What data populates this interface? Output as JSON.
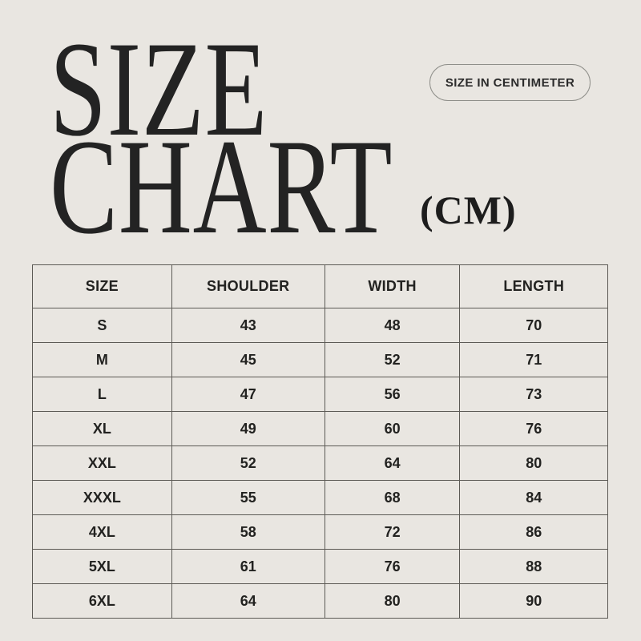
{
  "page": {
    "background_color": "#e9e6e1",
    "text_color": "#1f1f1f",
    "border_color": "#5c5a55"
  },
  "header": {
    "title_line1": "SIZE",
    "title_line2": "CHART",
    "unit_label": "(CM)",
    "badge_label": "SIZE IN CENTIMETER"
  },
  "table": {
    "columns": [
      "SIZE",
      "SHOULDER",
      "WIDTH",
      "LENGTH"
    ],
    "rows": [
      {
        "size": "S",
        "shoulder": "43",
        "width": "48",
        "length": "70"
      },
      {
        "size": "M",
        "shoulder": "45",
        "width": "52",
        "length": "71"
      },
      {
        "size": "L",
        "shoulder": "47",
        "width": "56",
        "length": "73"
      },
      {
        "size": "XL",
        "shoulder": "49",
        "width": "60",
        "length": "76"
      },
      {
        "size": "XXL",
        "shoulder": "52",
        "width": "64",
        "length": "80"
      },
      {
        "size": "XXXL",
        "shoulder": "55",
        "width": "68",
        "length": "84"
      },
      {
        "size": "4XL",
        "shoulder": "58",
        "width": "72",
        "length": "86"
      },
      {
        "size": "5XL",
        "shoulder": "61",
        "width": "76",
        "length": "88"
      },
      {
        "size": "6XL",
        "shoulder": "64",
        "width": "80",
        "length": "90"
      }
    ]
  },
  "chart_data": {
    "type": "table",
    "title": "SIZE CHART (CM)",
    "subtitle": "SIZE IN CENTIMETER",
    "columns": [
      "SIZE",
      "SHOULDER",
      "WIDTH",
      "LENGTH"
    ],
    "categories": [
      "S",
      "M",
      "L",
      "XL",
      "XXL",
      "XXXL",
      "4XL",
      "5XL",
      "6XL"
    ],
    "series": [
      {
        "name": "SHOULDER",
        "values": [
          43,
          45,
          47,
          49,
          52,
          55,
          58,
          61,
          64
        ]
      },
      {
        "name": "WIDTH",
        "values": [
          48,
          52,
          56,
          60,
          64,
          68,
          72,
          76,
          80
        ]
      },
      {
        "name": "LENGTH",
        "values": [
          70,
          71,
          73,
          76,
          80,
          84,
          86,
          88,
          90
        ]
      }
    ],
    "unit": "cm"
  }
}
